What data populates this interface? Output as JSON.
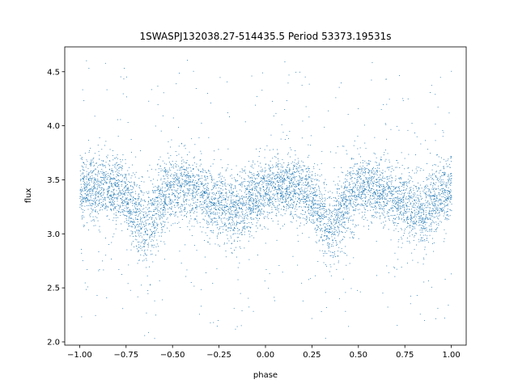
{
  "chart_data": {
    "type": "scatter",
    "title": "1SWASPJ132038.27-514435.5 Period 53373.19531s",
    "xlabel": "phase",
    "ylabel": "flux",
    "xlim": [
      -1.08,
      1.08
    ],
    "ylim": [
      1.97,
      4.73
    ],
    "xticks": [
      -1.0,
      -0.75,
      -0.5,
      -0.25,
      0.0,
      0.25,
      0.5,
      0.75,
      1.0
    ],
    "xtick_labels": [
      "−1.00",
      "−0.75",
      "−0.50",
      "−0.25",
      "0.00",
      "0.25",
      "0.50",
      "0.75",
      "1.00"
    ],
    "yticks": [
      2.0,
      2.5,
      3.0,
      3.5,
      4.0,
      4.5
    ],
    "ytick_labels": [
      "2.0",
      "2.5",
      "3.0",
      "3.5",
      "4.0",
      "4.5"
    ],
    "grid": false,
    "marker_color": "#1f77b4",
    "series": [
      {
        "x": [
          -1.0,
          -0.95,
          -0.9,
          -0.85,
          -0.8,
          -0.75,
          -0.7,
          -0.65,
          -0.6,
          -0.55,
          -0.5,
          -0.45,
          -0.4,
          -0.35,
          -0.3,
          -0.25,
          -0.2,
          -0.15,
          -0.1,
          -0.05,
          0.0,
          0.05,
          0.1,
          0.15,
          0.2,
          0.25,
          0.3,
          0.35,
          0.4,
          0.45,
          0.5,
          0.55,
          0.6,
          0.65,
          0.7,
          0.75,
          0.8,
          0.85,
          0.9,
          0.95,
          1.0
        ],
        "y": [
          3.42,
          3.43,
          3.44,
          3.43,
          3.41,
          3.35,
          3.2,
          3.03,
          3.2,
          3.35,
          3.42,
          3.44,
          3.43,
          3.38,
          3.32,
          3.27,
          3.23,
          3.19,
          3.3,
          3.38,
          3.42,
          3.43,
          3.44,
          3.43,
          3.41,
          3.35,
          3.2,
          3.03,
          3.2,
          3.35,
          3.42,
          3.44,
          3.43,
          3.38,
          3.32,
          3.27,
          3.23,
          3.19,
          3.3,
          3.38,
          3.42
        ],
        "spread": [
          0.2,
          0.2,
          0.2,
          0.2,
          0.2,
          0.21,
          0.23,
          0.25,
          0.23,
          0.21,
          0.2,
          0.2,
          0.2,
          0.2,
          0.21,
          0.22,
          0.22,
          0.23,
          0.21,
          0.2,
          0.2,
          0.2,
          0.2,
          0.2,
          0.2,
          0.21,
          0.23,
          0.25,
          0.23,
          0.21,
          0.2,
          0.2,
          0.2,
          0.2,
          0.21,
          0.22,
          0.22,
          0.23,
          0.21,
          0.2,
          0.2
        ]
      }
    ]
  }
}
